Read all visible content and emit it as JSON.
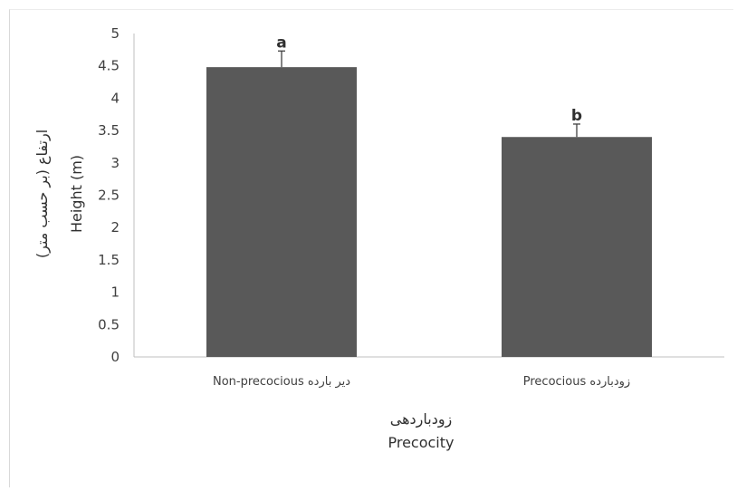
{
  "chart_data": {
    "type": "bar",
    "categories": [
      "Non-precocious دیر بارده",
      "Precocious  زودبارده"
    ],
    "values": [
      4.48,
      3.4
    ],
    "error_upper": [
      0.25,
      0.2
    ],
    "significance_letters": [
      "a",
      "b"
    ],
    "yticks": [
      "0",
      "0.5",
      "1",
      "1.5",
      "2",
      "2.5",
      "3",
      "3.5",
      "4",
      "4.5",
      "5"
    ],
    "ylim": [
      0,
      5
    ],
    "ylabel_fa": "ارتفاع (بر حسب متر)",
    "ylabel_en": "Height (m)",
    "xlabel_fa": "زودباردهی",
    "xlabel_en": "Precocity",
    "grid": false,
    "bar_color": "#595959"
  }
}
